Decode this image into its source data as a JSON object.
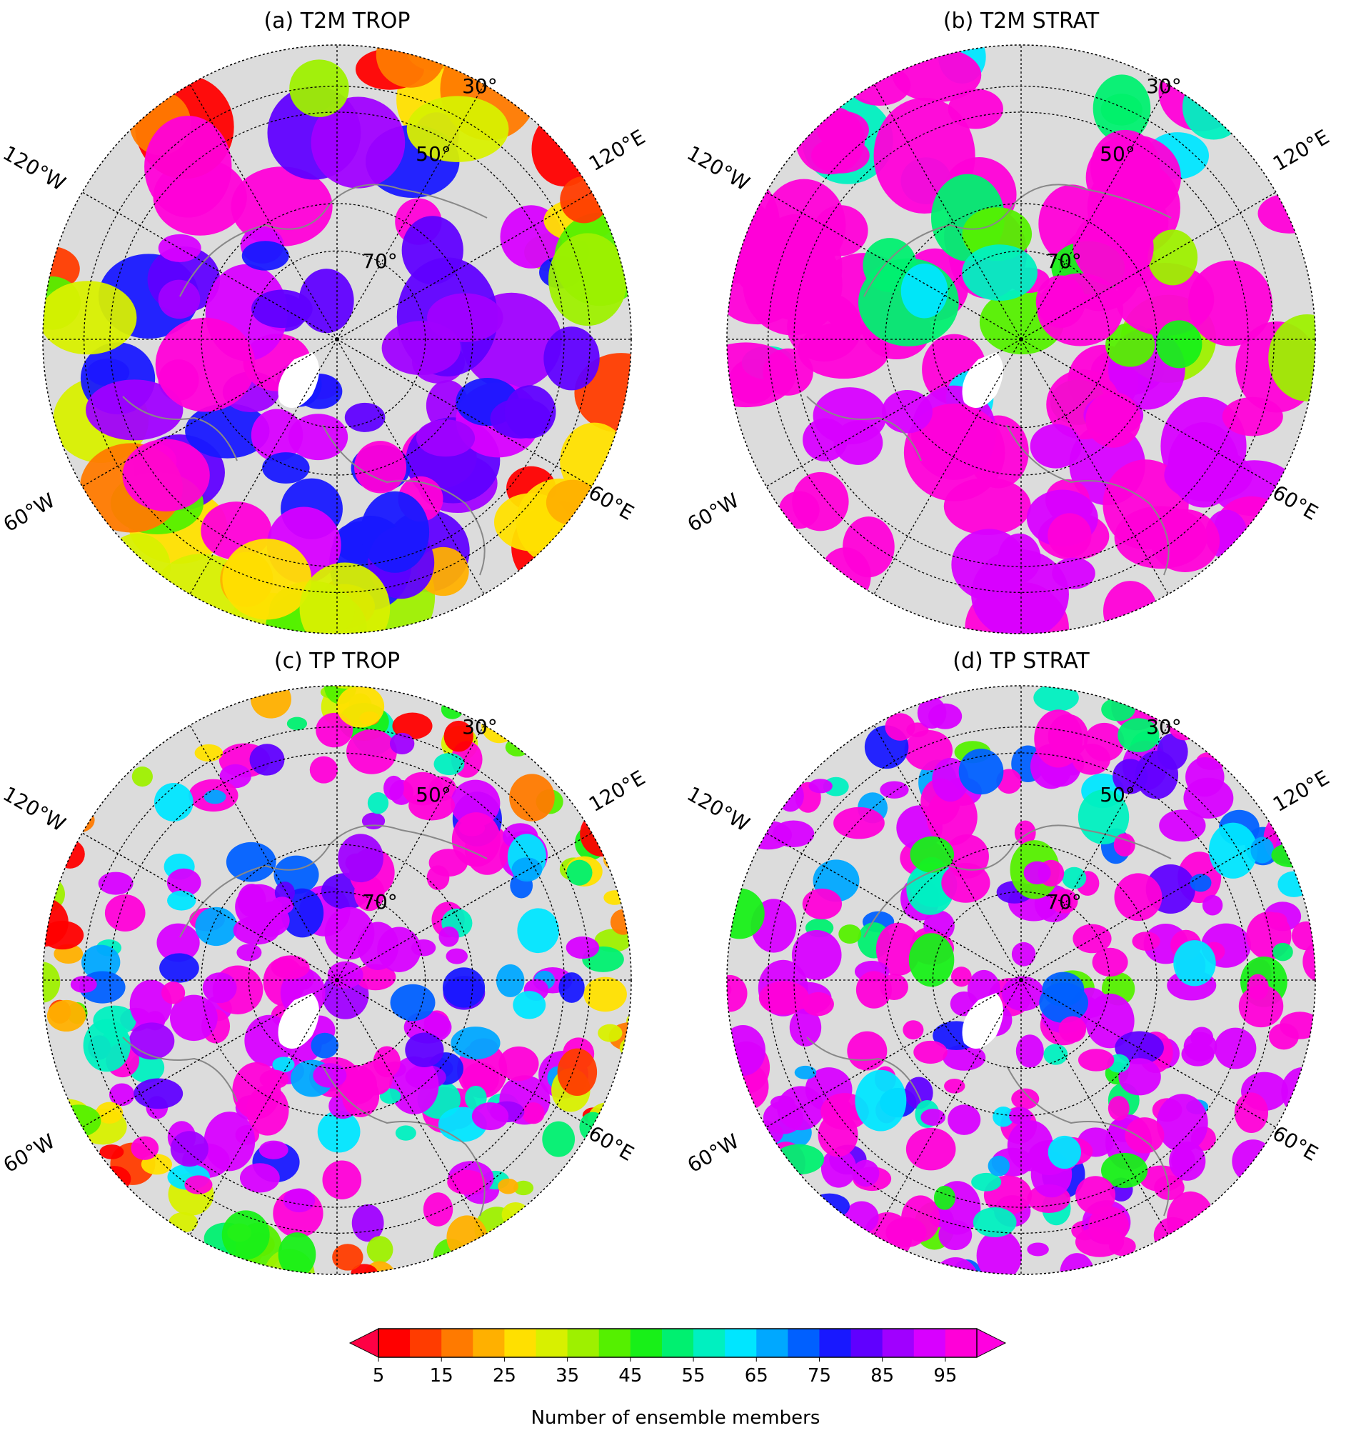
{
  "panels": [
    {
      "title": "(a) T2M TROP",
      "scenario": "a"
    },
    {
      "title": "(b) T2M STRAT",
      "scenario": "b"
    },
    {
      "title": "(c) TP TROP",
      "scenario": "c"
    },
    {
      "title": "(d) TP STRAT",
      "scenario": "d"
    }
  ],
  "map_labels": {
    "lon_120w": "120°W",
    "lon_60w": "60°W",
    "lon_120e": "120°E",
    "lon_60e": "60°E",
    "lat_30": "30°",
    "lat_50": "50°",
    "lat_70": "70°"
  },
  "colorbar": {
    "label": "Number of ensemble members",
    "ticks": [
      "5",
      "15",
      "25",
      "35",
      "45",
      "55",
      "65",
      "75",
      "85",
      "95"
    ],
    "colors": [
      "#ff0000",
      "#ff3c00",
      "#ff7a00",
      "#ffb000",
      "#ffe000",
      "#d8f000",
      "#9ef000",
      "#55f000",
      "#18f018",
      "#00f070",
      "#00f0c0",
      "#00e6ff",
      "#00a8ff",
      "#0060ff",
      "#1818ff",
      "#6000ff",
      "#a000ff",
      "#d800ff",
      "#ff00d8"
    ],
    "under_color": "#ff0044",
    "over_color": "#ff00e0"
  },
  "map_colors": {
    "land_background": "#dcdcdc",
    "missing": "#ffffff",
    "coastline": "#888888",
    "gridline": "#000000"
  }
}
